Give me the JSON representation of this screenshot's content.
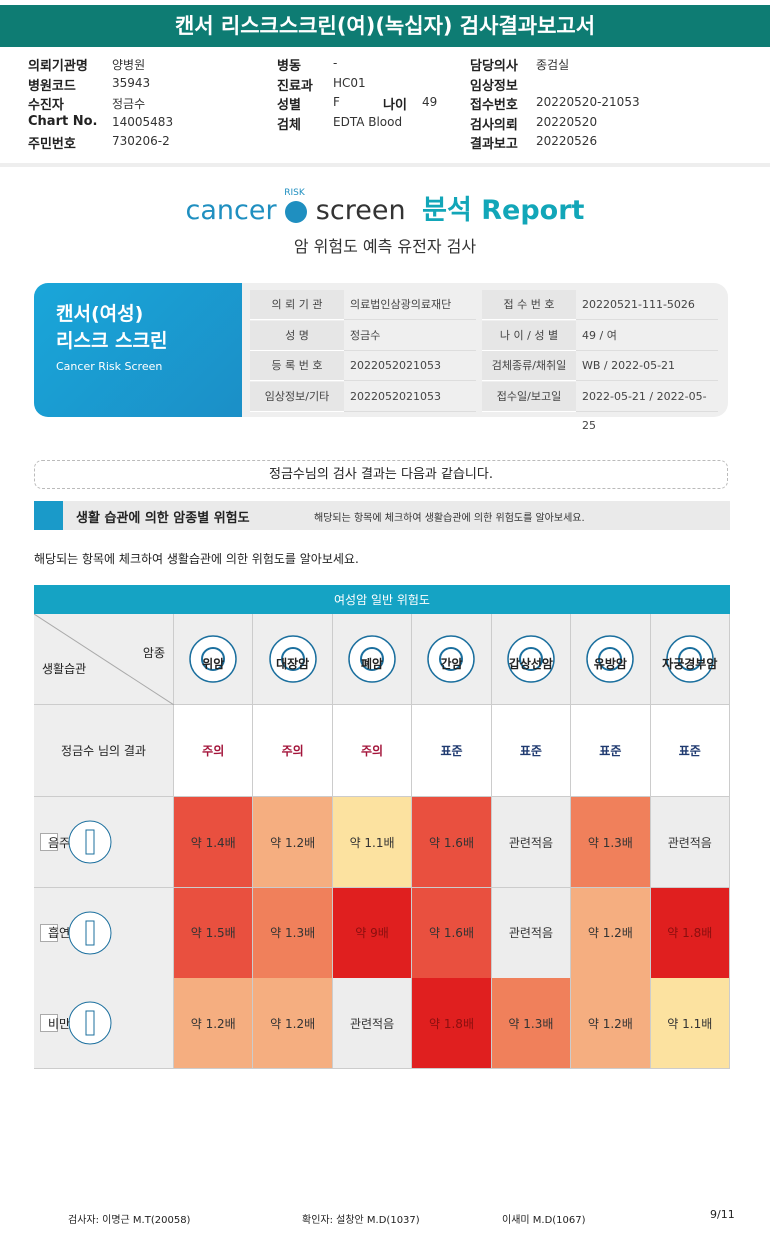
{
  "header": {
    "title": "캔서 리스크스크린(여)(녹십자) 검사결과보고서"
  },
  "info": {
    "columns": [
      [
        {
          "label": "의뢰기관명",
          "value": "양병원"
        },
        {
          "label": "병원코드",
          "value": "35943"
        },
        {
          "label": "수진자",
          "value": "정금수"
        },
        {
          "label": "Chart No.",
          "value": "14005483"
        },
        {
          "label": "주민번호",
          "value": "730206-2"
        }
      ],
      [
        {
          "label": "병동",
          "value": "-"
        },
        {
          "label": "진료과",
          "value": "HC01"
        },
        {
          "label": "성별",
          "value": "F",
          "label2": "나이",
          "value2": "49"
        },
        {
          "label": "검체",
          "value": "EDTA Blood"
        }
      ],
      [
        {
          "label": "담당의사",
          "value": "종검실"
        },
        {
          "label": "임상정보"
        },
        {
          "label": "접수번호",
          "value": "20220520-21053"
        },
        {
          "label": "검사의뢰",
          "value": "20220520"
        },
        {
          "label": "결과보고",
          "value": "20220526"
        }
      ]
    ]
  },
  "logo": {
    "cancer": "cancer",
    "risk": "RISK",
    "screen": "screen",
    "report": "분석 Report",
    "subtitle": "암 위험도 예측 유전자 검사"
  },
  "card": {
    "title1": "캔서(여성)",
    "title2": "리스크 스크린",
    "english": "Cancer Risk Screen",
    "rows": [
      [
        "의 뢰 기 관",
        "의료법인삼광의료재단",
        "접 수 번 호",
        "20220521-111-5026"
      ],
      [
        "성 명",
        "정금수",
        "나 이 / 성 별",
        "49 / 여"
      ],
      [
        "등 록 번 호",
        "2022052021053",
        "검체종류/채취일",
        "WB / 2022-05-21"
      ],
      [
        "임상정보/기타",
        "2022052021053",
        "접수일/보고일",
        "2022-05-21 / 2022-05-25"
      ]
    ]
  },
  "notice": "정금수님의 검사 결과는 다음과 같습니다.",
  "section": {
    "title": "생활 습관에 의한 암종별 위험도",
    "hint": "해당되는 항목에 체크하여 생활습관에 의한 위험도를 알아보세요."
  },
  "intro": "해당되는 항목에 체크하여 생활습관에 의한 위험도를 알아보세요.",
  "table": {
    "caption": "여성암 일반 위험도",
    "corner_top": "암종",
    "corner_bottom": "생활습관",
    "cancers": [
      "위암",
      "대장암",
      "폐암",
      "간암",
      "갑상선암",
      "유방암",
      "자궁경부암"
    ],
    "result_label": "정금수 님의 결과",
    "results": [
      "주의",
      "주의",
      "주의",
      "표준",
      "표준",
      "표준",
      "표준"
    ],
    "result_colors": [
      "#a3143a",
      "#a3143a",
      "#a3143a",
      "#1f3a70",
      "#1f3a70",
      "#1f3a70",
      "#1f3a70"
    ],
    "rows": [
      {
        "habit": "음주",
        "cells": [
          "약 1.4배",
          "약 1.2배",
          "약 1.1배",
          "약 1.6배",
          "관련적음",
          "약 1.3배",
          "관련적음"
        ],
        "colors": [
          "#e9503f",
          "#f5ae80",
          "#fce2a0",
          "#e9503f",
          "#ededed",
          "#f0805b",
          "#ededed"
        ]
      },
      {
        "habit": "흡연",
        "cells": [
          "약 1.5배",
          "약 1.3배",
          "약 9배",
          "약 1.6배",
          "관련적음",
          "약 1.2배",
          "약 1.8배"
        ],
        "colors": [
          "#e9503f",
          "#f0805b",
          "#e01f1f",
          "#e9503f",
          "#ededed",
          "#f5ae80",
          "#e01f1f"
        ]
      },
      {
        "habit": "비만",
        "cells": [
          "약 1.2배",
          "약 1.2배",
          "관련적음",
          "약 1.8배",
          "약 1.3배",
          "약 1.2배",
          "약 1.1배"
        ],
        "colors": [
          "#f5ae80",
          "#f5ae80",
          "#ededed",
          "#e01f1f",
          "#f0805b",
          "#f5ae80",
          "#fce2a0"
        ]
      }
    ]
  },
  "footer": {
    "tester": "검사자: 이명근 M.T(20058)",
    "checker": "확인자: 설창안 M.D(1037)",
    "doctor": "이새미 M.D(1067)",
    "page": "9/11"
  }
}
